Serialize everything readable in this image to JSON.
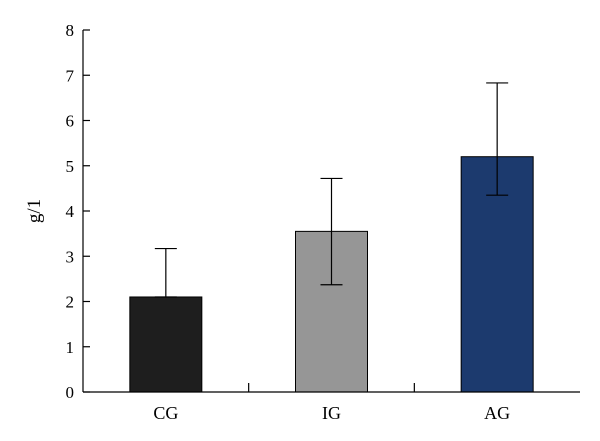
{
  "chart_data": {
    "type": "bar",
    "title": "",
    "xlabel": "",
    "ylabel": "g/1",
    "ylim": [
      0,
      8
    ],
    "yticks": [
      0,
      1,
      2,
      3,
      4,
      5,
      6,
      7,
      8
    ],
    "grid": false,
    "categories": [
      "CG",
      "IG",
      "AG"
    ],
    "values": [
      2.1,
      3.55,
      5.2
    ],
    "error_upper": [
      3.17,
      4.72,
      6.83
    ],
    "error_lower": [
      2.1,
      2.37,
      4.35
    ],
    "colors": [
      "#1e1e1e",
      "#969696",
      "#1c3a6e"
    ]
  }
}
